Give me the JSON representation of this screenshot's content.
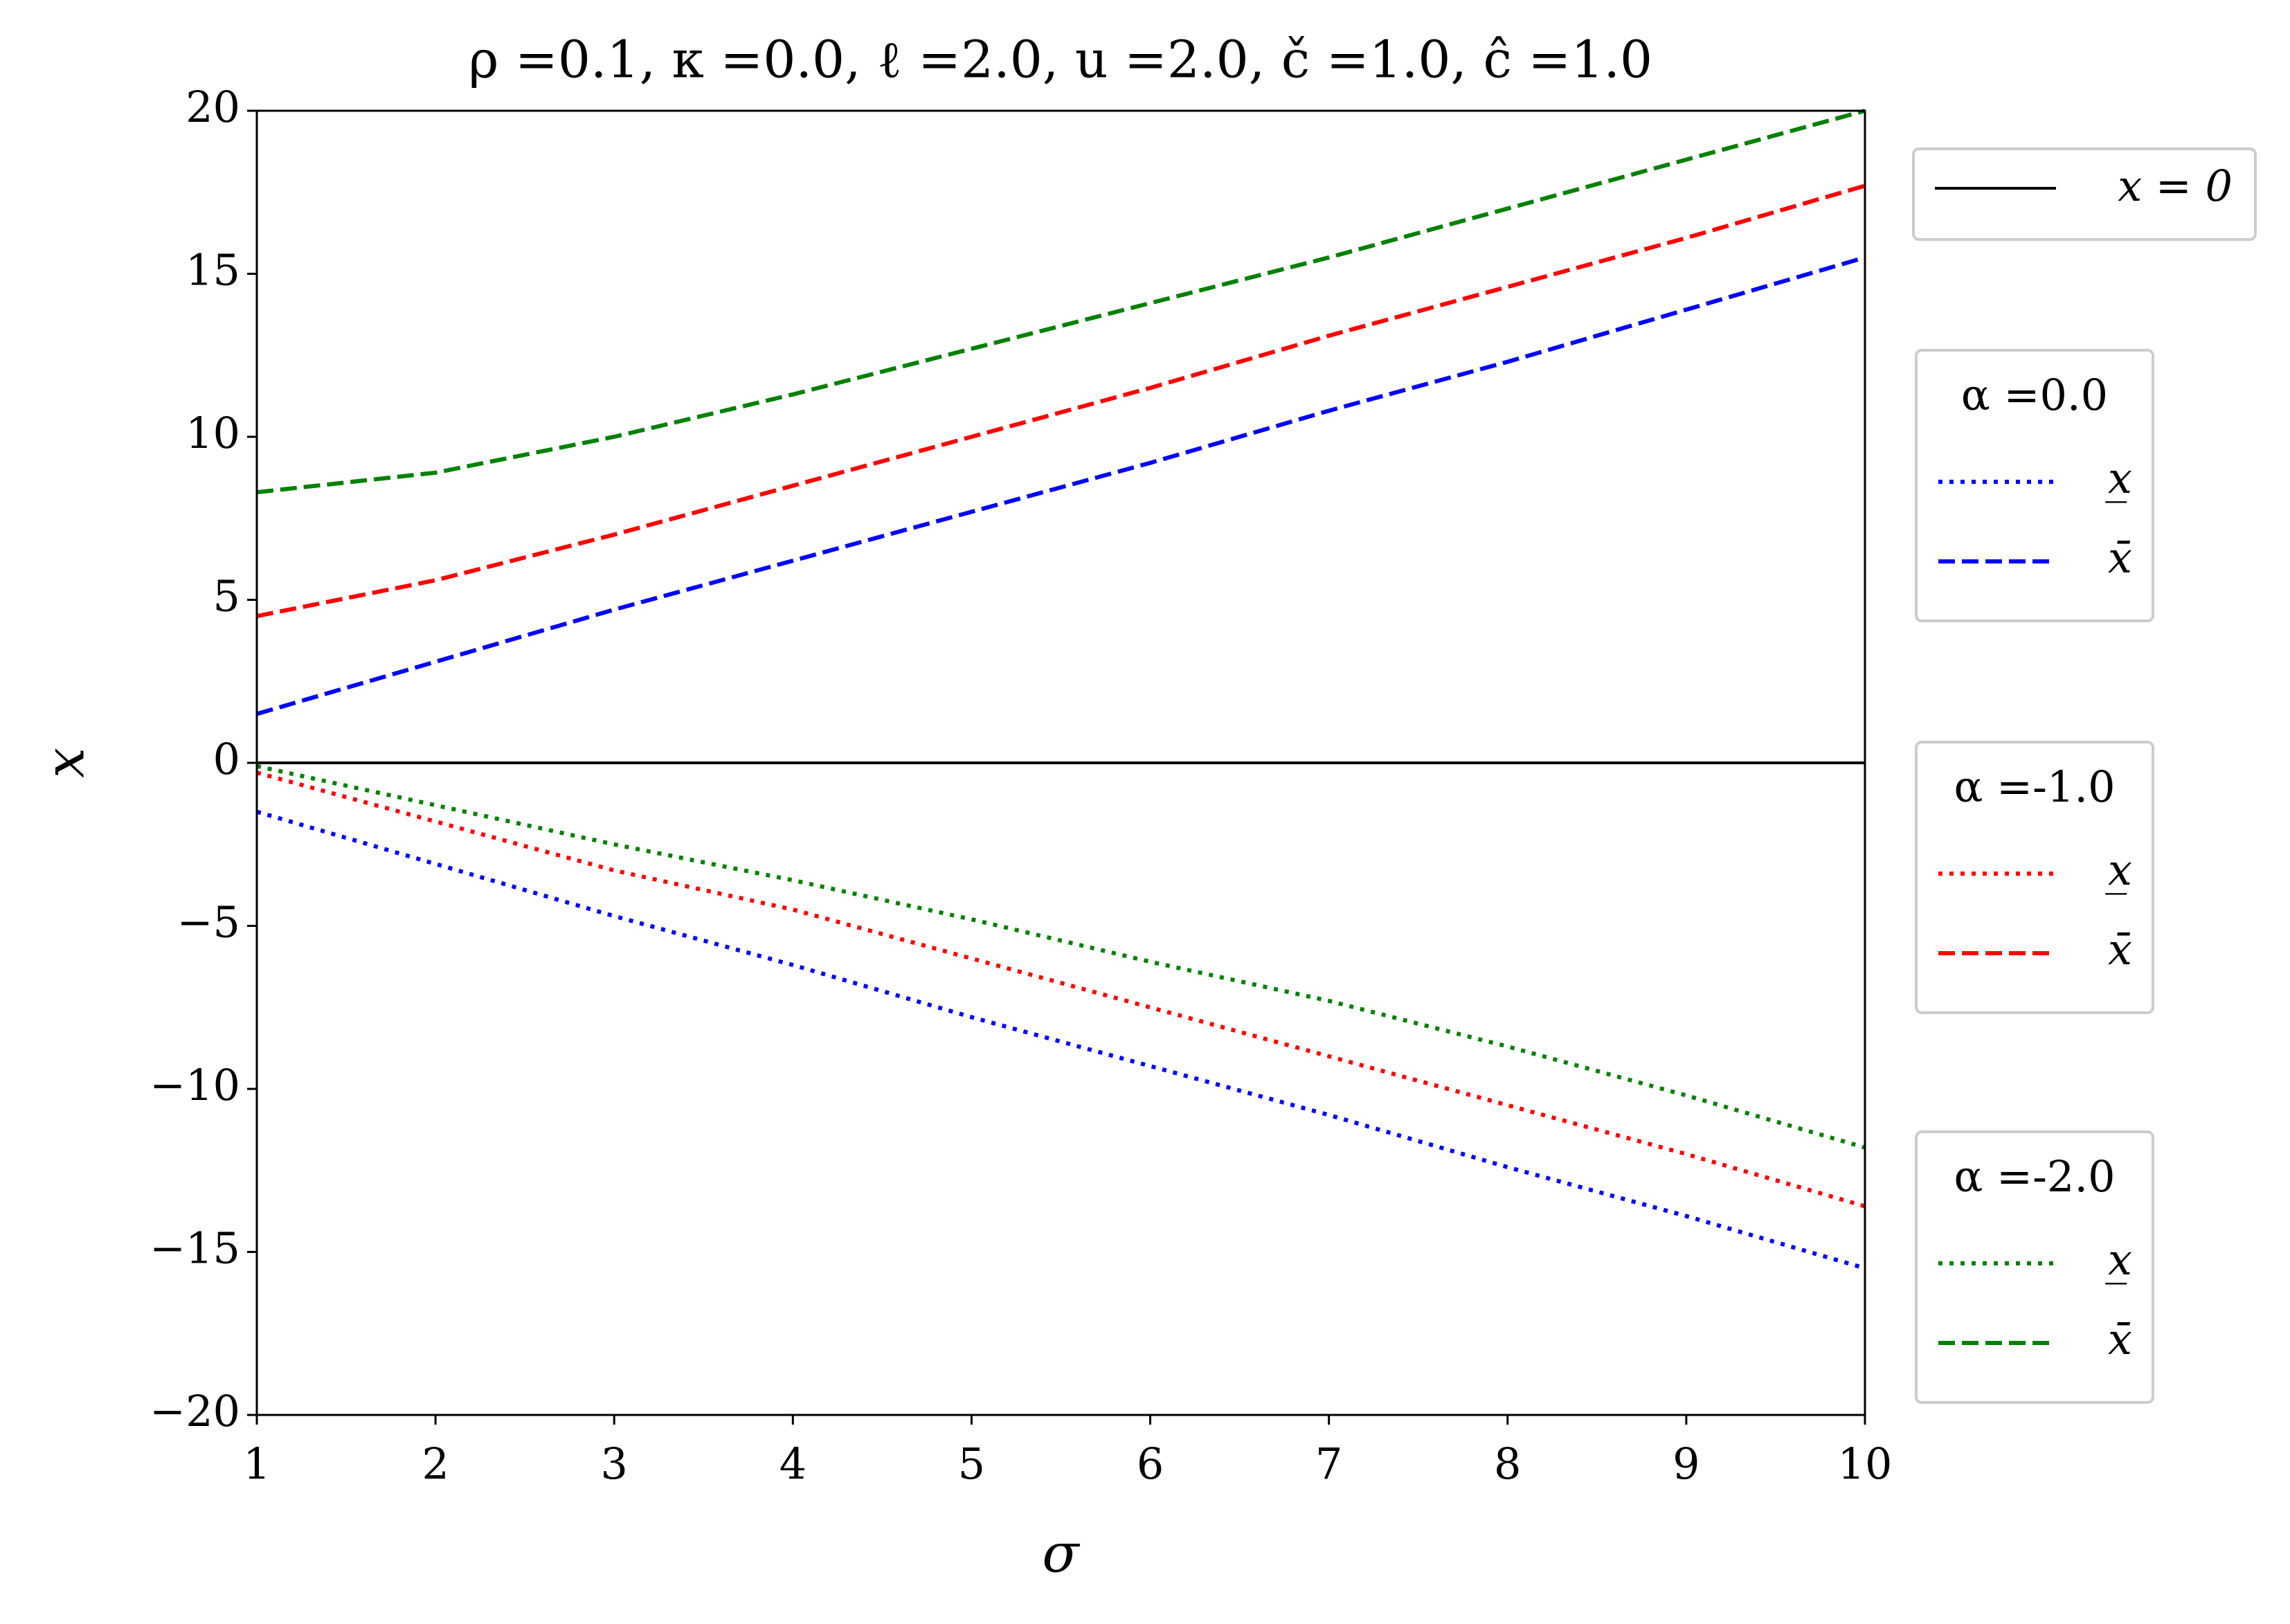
{
  "chart_data": {
    "type": "line",
    "title": "ρ =0.1, κ =0.0, ℓ =2.0, u =2.0, č =1.0, ĉ =1.0",
    "xlabel": "σ",
    "ylabel": "x",
    "x": [
      1,
      2,
      3,
      4,
      5,
      6,
      7,
      8,
      9,
      10
    ],
    "xlim": [
      1,
      10
    ],
    "ylim": [
      -20,
      20
    ],
    "xticks": [
      1,
      2,
      3,
      4,
      5,
      6,
      7,
      8,
      9,
      10
    ],
    "yticks": [
      {
        "value": -20,
        "label": "−20"
      },
      {
        "value": -15,
        "label": "−15"
      },
      {
        "value": -10,
        "label": "−10"
      },
      {
        "value": -5,
        "label": "−5"
      },
      0,
      5,
      10,
      15,
      20
    ],
    "hlines": [
      {
        "value": 0,
        "name": "x = 0",
        "color": "#000000"
      }
    ],
    "groups": [
      {
        "title": "α =0.0",
        "series": [
          {
            "name": "x̲",
            "color": "#0000ff",
            "style": "dotted",
            "values": [
              -1.5,
              -3.1,
              -4.7,
              -6.2,
              -7.8,
              -9.3,
              -10.8,
              -12.4,
              -13.9,
              -15.5
            ]
          },
          {
            "name": "x̄",
            "color": "#0000ff",
            "style": "dashed",
            "values": [
              1.5,
              3.1,
              4.7,
              6.2,
              7.7,
              9.2,
              10.8,
              12.3,
              13.9,
              15.5
            ]
          }
        ]
      },
      {
        "title": "α =-1.0",
        "series": [
          {
            "name": "x̲",
            "color": "#ff0000",
            "style": "dotted",
            "values": [
              -0.3,
              -1.8,
              -3.3,
              -4.5,
              -6.0,
              -7.5,
              -9.0,
              -10.5,
              -12.0,
              -13.6
            ]
          },
          {
            "name": "x̄",
            "color": "#ff0000",
            "style": "dashed",
            "values": [
              4.5,
              5.6,
              7.0,
              8.5,
              10.0,
              11.5,
              13.1,
              14.6,
              16.1,
              17.7
            ]
          }
        ]
      },
      {
        "title": "α =-2.0",
        "series": [
          {
            "name": "x̲",
            "color": "#008000",
            "style": "dotted",
            "values": [
              -0.1,
              -1.3,
              -2.5,
              -3.6,
              -4.8,
              -6.1,
              -7.3,
              -8.7,
              -10.2,
              -11.8
            ]
          },
          {
            "name": "x̄",
            "color": "#008000",
            "style": "dashed",
            "values": [
              8.3,
              8.9,
              10.0,
              11.3,
              12.7,
              14.1,
              15.5,
              17.0,
              18.5,
              20.0
            ]
          }
        ]
      }
    ]
  }
}
